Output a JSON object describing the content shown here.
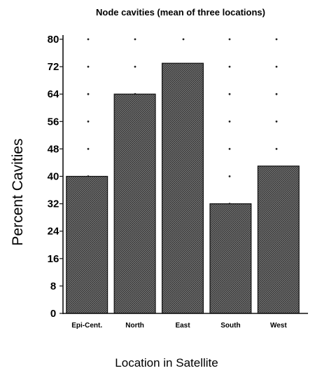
{
  "chart_data": {
    "type": "bar",
    "title": "Node cavities (mean of three locations)",
    "xlabel": "Location in Satellite",
    "ylabel": "Percent Cavities",
    "categories": [
      "Epi-Cent.",
      "North",
      "East",
      "South",
      "West"
    ],
    "values": [
      40,
      64,
      73,
      32,
      43
    ],
    "ylim": [
      0,
      80
    ],
    "yticks": [
      "0",
      "8",
      "16",
      "24",
      "32",
      "40",
      "48",
      "56",
      "64",
      "72",
      "80"
    ],
    "grid": "dotted",
    "legend": "none",
    "colors": {
      "bar_fill": "#4a4a4a",
      "bar_stroke": "#111111",
      "axis": "#111111",
      "grid_dot": "#222222"
    }
  }
}
